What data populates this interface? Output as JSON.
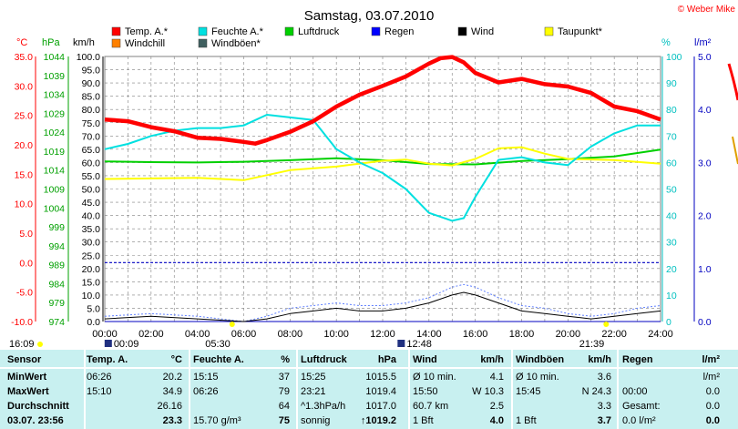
{
  "chart_data": {
    "type": "line",
    "title": "Samstag, 03.07.2010",
    "credit": "© Weber Mike",
    "x_ticks": [
      "00:00",
      "02:00",
      "04:00",
      "06:00",
      "08:00",
      "10:00",
      "12:00",
      "14:00",
      "16:00",
      "18:00",
      "20:00",
      "22:00",
      "24:00"
    ],
    "axes": {
      "celsius": {
        "label": "°C",
        "ticks": [
          "35.0",
          "30.0",
          "25.0",
          "20.0",
          "15.0",
          "10.0",
          "5.0",
          "0.0",
          "-5.0",
          "-10.0"
        ],
        "range": [
          -10,
          35
        ],
        "color": "#ff0000"
      },
      "hpa": {
        "label": "hPa",
        "ticks": [
          "1044",
          "1039",
          "1034",
          "1029",
          "1024",
          "1019",
          "1014",
          "1009",
          "1004",
          "999",
          "994",
          "989",
          "984",
          "979",
          "974"
        ],
        "range": [
          974,
          1044
        ],
        "color": "#00a000"
      },
      "kmh": {
        "label": "km/h",
        "ticks": [
          "100.0",
          "95.0",
          "90.0",
          "85.0",
          "80.0",
          "75.0",
          "70.0",
          "65.0",
          "60.0",
          "55.0",
          "50.0",
          "45.0",
          "40.0",
          "35.0",
          "30.0",
          "25.0",
          "20.0",
          "15.0",
          "10.0",
          "5.0",
          "0.0"
        ],
        "range": [
          0,
          100
        ],
        "color": "#000000"
      },
      "pct": {
        "label": "%",
        "ticks": [
          "100",
          "90",
          "80",
          "70",
          "60",
          "50",
          "40",
          "30",
          "20",
          "10",
          "0"
        ],
        "range": [
          0,
          100
        ],
        "color": "#00c8c8"
      },
      "rain": {
        "label": "l/m²",
        "ticks": [
          "5.0",
          "4.0",
          "3.0",
          "2.0",
          "1.0",
          "0.0"
        ],
        "range": [
          0,
          5
        ],
        "color": "#0000c0"
      }
    },
    "legend": [
      {
        "name": "Temp. A.*",
        "color": "#ff0000"
      },
      {
        "name": "Feuchte A.*",
        "color": "#00e0e0"
      },
      {
        "name": "Luftdruck",
        "color": "#00d000"
      },
      {
        "name": "Regen",
        "color": "#0000ff"
      },
      {
        "name": "Wind",
        "color": "#000000"
      },
      {
        "name": "Taupunkt*",
        "color": "#ffff00"
      },
      {
        "name": "Windchill",
        "color": "#ff8000"
      },
      {
        "name": "Windböen*",
        "color": "#406060"
      }
    ],
    "series": [
      {
        "name": "Temp. A.*",
        "axis": "celsius",
        "color": "#ff0000",
        "x": [
          0,
          1,
          2,
          3,
          4,
          5,
          6,
          6.5,
          7,
          8,
          9,
          10,
          11,
          12,
          13,
          14,
          14.5,
          15,
          15.5,
          16,
          17,
          18,
          19,
          20,
          21,
          22,
          23,
          24
        ],
        "values": [
          24.3,
          24.0,
          23.0,
          22.3,
          21.2,
          21.0,
          20.5,
          20.2,
          20.8,
          22.2,
          24.0,
          26.5,
          28.5,
          30.0,
          31.6,
          33.8,
          34.7,
          34.9,
          34.0,
          32.2,
          30.6,
          31.2,
          30.3,
          29.9,
          28.8,
          26.5,
          25.7,
          24.3
        ]
      },
      {
        "name": "Feuchte A.*",
        "axis": "pct",
        "color": "#00e0e0",
        "x": [
          0,
          1,
          2,
          3,
          4,
          5,
          6,
          7,
          8,
          9,
          10,
          11,
          12,
          13,
          14,
          15,
          15.5,
          16,
          17,
          18,
          19,
          20,
          21,
          22,
          23,
          24
        ],
        "values": [
          65,
          67,
          70,
          72,
          73,
          73,
          74,
          78,
          77,
          76,
          65,
          60,
          56,
          50,
          41,
          38,
          39,
          47,
          61,
          62,
          60,
          59,
          66,
          71,
          74,
          74
        ]
      },
      {
        "name": "Luftdruck",
        "axis": "hpa",
        "color": "#00d000",
        "x": [
          0,
          2,
          4,
          6,
          8,
          10,
          12,
          14,
          16,
          18,
          20,
          22,
          24
        ],
        "values": [
          1016.3,
          1016.1,
          1016.0,
          1016.2,
          1016.6,
          1017.1,
          1016.6,
          1015.6,
          1015.5,
          1016.4,
          1016.9,
          1017.6,
          1019.4
        ]
      },
      {
        "name": "Taupunkt*",
        "axis": "celsius",
        "color": "#ffff00",
        "x": [
          0,
          2,
          4,
          6,
          8,
          10,
          12,
          13,
          14,
          15,
          16,
          17,
          18,
          19,
          20,
          22,
          24
        ],
        "values": [
          14.2,
          14.3,
          14.4,
          14.0,
          15.7,
          16.3,
          17.3,
          17.5,
          16.8,
          16.5,
          17.6,
          19.4,
          19.6,
          18.5,
          17.6,
          17.4,
          16.8
        ]
      },
      {
        "name": "Wind",
        "axis": "kmh",
        "color": "#000000",
        "x": [
          0,
          2,
          4,
          6,
          7,
          8,
          9,
          10,
          11,
          12,
          13,
          14,
          15,
          15.5,
          16,
          17,
          18,
          19,
          20,
          21,
          22,
          23,
          24
        ],
        "values": [
          1,
          2,
          1,
          0,
          1,
          3,
          4,
          5,
          4,
          4,
          5,
          7,
          10,
          11,
          10,
          7,
          4,
          3,
          2,
          1,
          2,
          3,
          4
        ]
      },
      {
        "name": "Windböen*",
        "axis": "kmh",
        "color": "#6080ff",
        "x": [
          0,
          2,
          4,
          6,
          7,
          8,
          9,
          10,
          11,
          12,
          13,
          14,
          15,
          15.5,
          16,
          17,
          18,
          19,
          20,
          21,
          22,
          23,
          24
        ],
        "values": [
          2,
          3,
          2,
          0,
          2,
          5,
          6,
          7,
          6,
          6,
          7,
          9,
          13,
          14,
          13,
          9,
          6,
          5,
          3,
          2,
          3,
          5,
          6
        ]
      },
      {
        "name": "Regen",
        "axis": "rain",
        "color": "#0000c0",
        "x": [
          0,
          24
        ],
        "values": [
          0,
          0
        ]
      }
    ],
    "ref_line": {
      "label": "0.0",
      "axis": "celsius",
      "value": 0,
      "color": "#0000c0"
    },
    "markers": {
      "sunrise": "05:30",
      "sunset": "21:39",
      "moonrise": "00:09",
      "moon": "12:48",
      "daylight_start": "16:09"
    }
  },
  "table": {
    "headers": {
      "sensor": "Sensor",
      "temp": "Temp. A.",
      "temp_unit": "°C",
      "hum": "Feuchte A.",
      "hum_unit": "%",
      "press": "Luftdruck",
      "press_unit": "hPa",
      "wind": "Wind",
      "wind_unit": "km/h",
      "gust": "Windböen",
      "gust_unit": "km/h",
      "rain": "Regen",
      "rain_unit": "l/m²"
    },
    "rows": [
      {
        "label": "MinWert",
        "temp_t": "06:26",
        "temp_v": "20.2",
        "hum_t": "15:15",
        "hum_v": "37",
        "press_t": "15:25",
        "press_v": "1015.5",
        "wind_t": "Ø 10 min.",
        "wind_v": "4.1",
        "gust_t": "Ø 10 min.",
        "gust_v": "3.6",
        "rain_t": "",
        "rain_v": "l/m²"
      },
      {
        "label": "MaxWert",
        "temp_t": "15:10",
        "temp_v": "34.9",
        "hum_t": "06:26",
        "hum_v": "79",
        "press_t": "23:21",
        "press_v": "1019.4",
        "wind_t": "15:50",
        "wind_v": "W 10.3",
        "gust_t": "15:45",
        "gust_v": "N 24.3",
        "rain_t": "00:00",
        "rain_v": "0.0"
      },
      {
        "label": "Durchschnitt",
        "temp_t": "",
        "temp_v": "26.16",
        "hum_t": "",
        "hum_v": "64",
        "press_t": "^1.3hPa/h",
        "press_v": "1017.0",
        "wind_t": "60.7 km",
        "wind_v": "2.5",
        "gust_t": "",
        "gust_v": "3.3",
        "rain_t": "Gesamt:",
        "rain_v": "0.0"
      },
      {
        "label": "03.07.  23:56",
        "temp_t": "",
        "temp_v": "23.3",
        "hum_t": "15.70 g/m³",
        "hum_v": "75",
        "press_t": "sonnig",
        "press_v": "↑1019.2",
        "wind_t": "1 Bft",
        "wind_v": "4.0",
        "gust_t": "1 Bft",
        "gust_v": "3.7",
        "rain_t": "0.0 l/m²",
        "rain_v": "0.0"
      }
    ]
  }
}
